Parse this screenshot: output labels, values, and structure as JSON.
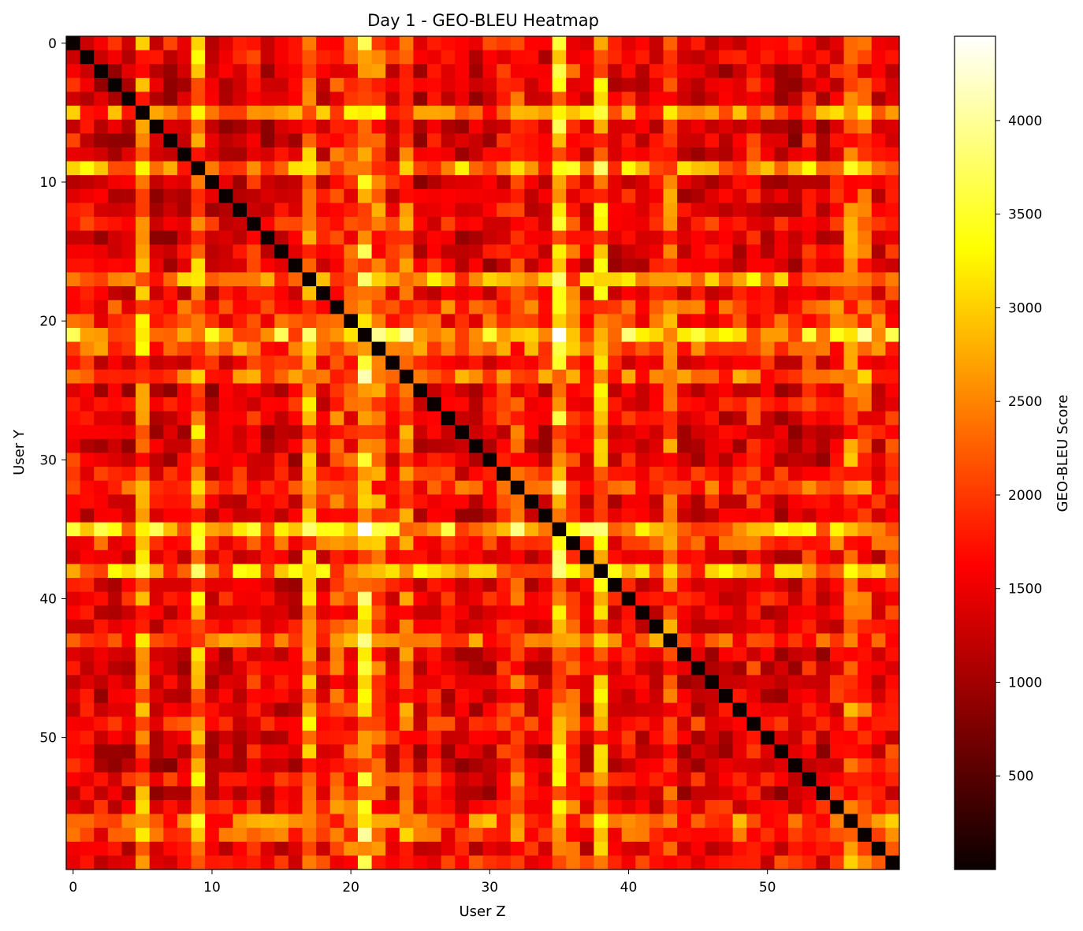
{
  "chart_data": {
    "type": "heatmap",
    "title": "Day 1 - GEO-BLEU Heatmap",
    "xlabel": "User Z",
    "ylabel": "User Y",
    "n_rows": 60,
    "n_cols": 60,
    "colormap": "hot",
    "color_range": [
      0,
      4450
    ],
    "x_ticks": [
      0,
      10,
      20,
      30,
      40,
      50
    ],
    "y_ticks": [
      0,
      10,
      20,
      30,
      40,
      50
    ],
    "diagonal_value": 0,
    "user_mean_scores": [
      1900,
      1650,
      1200,
      1400,
      1300,
      3000,
      1150,
      1200,
      1450,
      3100,
      1200,
      1350,
      1500,
      1900,
      1300,
      1550,
      1350,
      3000,
      1650,
      2400,
      2300,
      3650,
      2600,
      1800,
      2700,
      1250,
      1800,
      1550,
      1350,
      1350,
      1400,
      1900,
      2300,
      1700,
      1400,
      3650,
      2300,
      1600,
      3250,
      1300,
      1800,
      1350,
      1600,
      2600,
      1400,
      1350,
      1500,
      1450,
      1500,
      2000,
      1400,
      1250,
      1100,
      1900,
      1300,
      1800,
      2850,
      2300,
      1700,
      2000
    ],
    "highlight_cells": [
      {
        "row": 21,
        "col": 35,
        "value": 4450
      },
      {
        "row": 35,
        "col": 21,
        "value": 4450
      },
      {
        "row": 21,
        "col": 22,
        "value": 3950
      },
      {
        "row": 43,
        "col": 21,
        "value": 3900
      },
      {
        "row": 38,
        "col": 35,
        "value": 3850
      },
      {
        "row": 35,
        "col": 38,
        "value": 3850
      }
    ],
    "colorbar": {
      "label": "GEO-BLEU Score",
      "ticks": [
        500,
        1000,
        1500,
        2000,
        2500,
        3000,
        3500,
        4000
      ]
    }
  }
}
